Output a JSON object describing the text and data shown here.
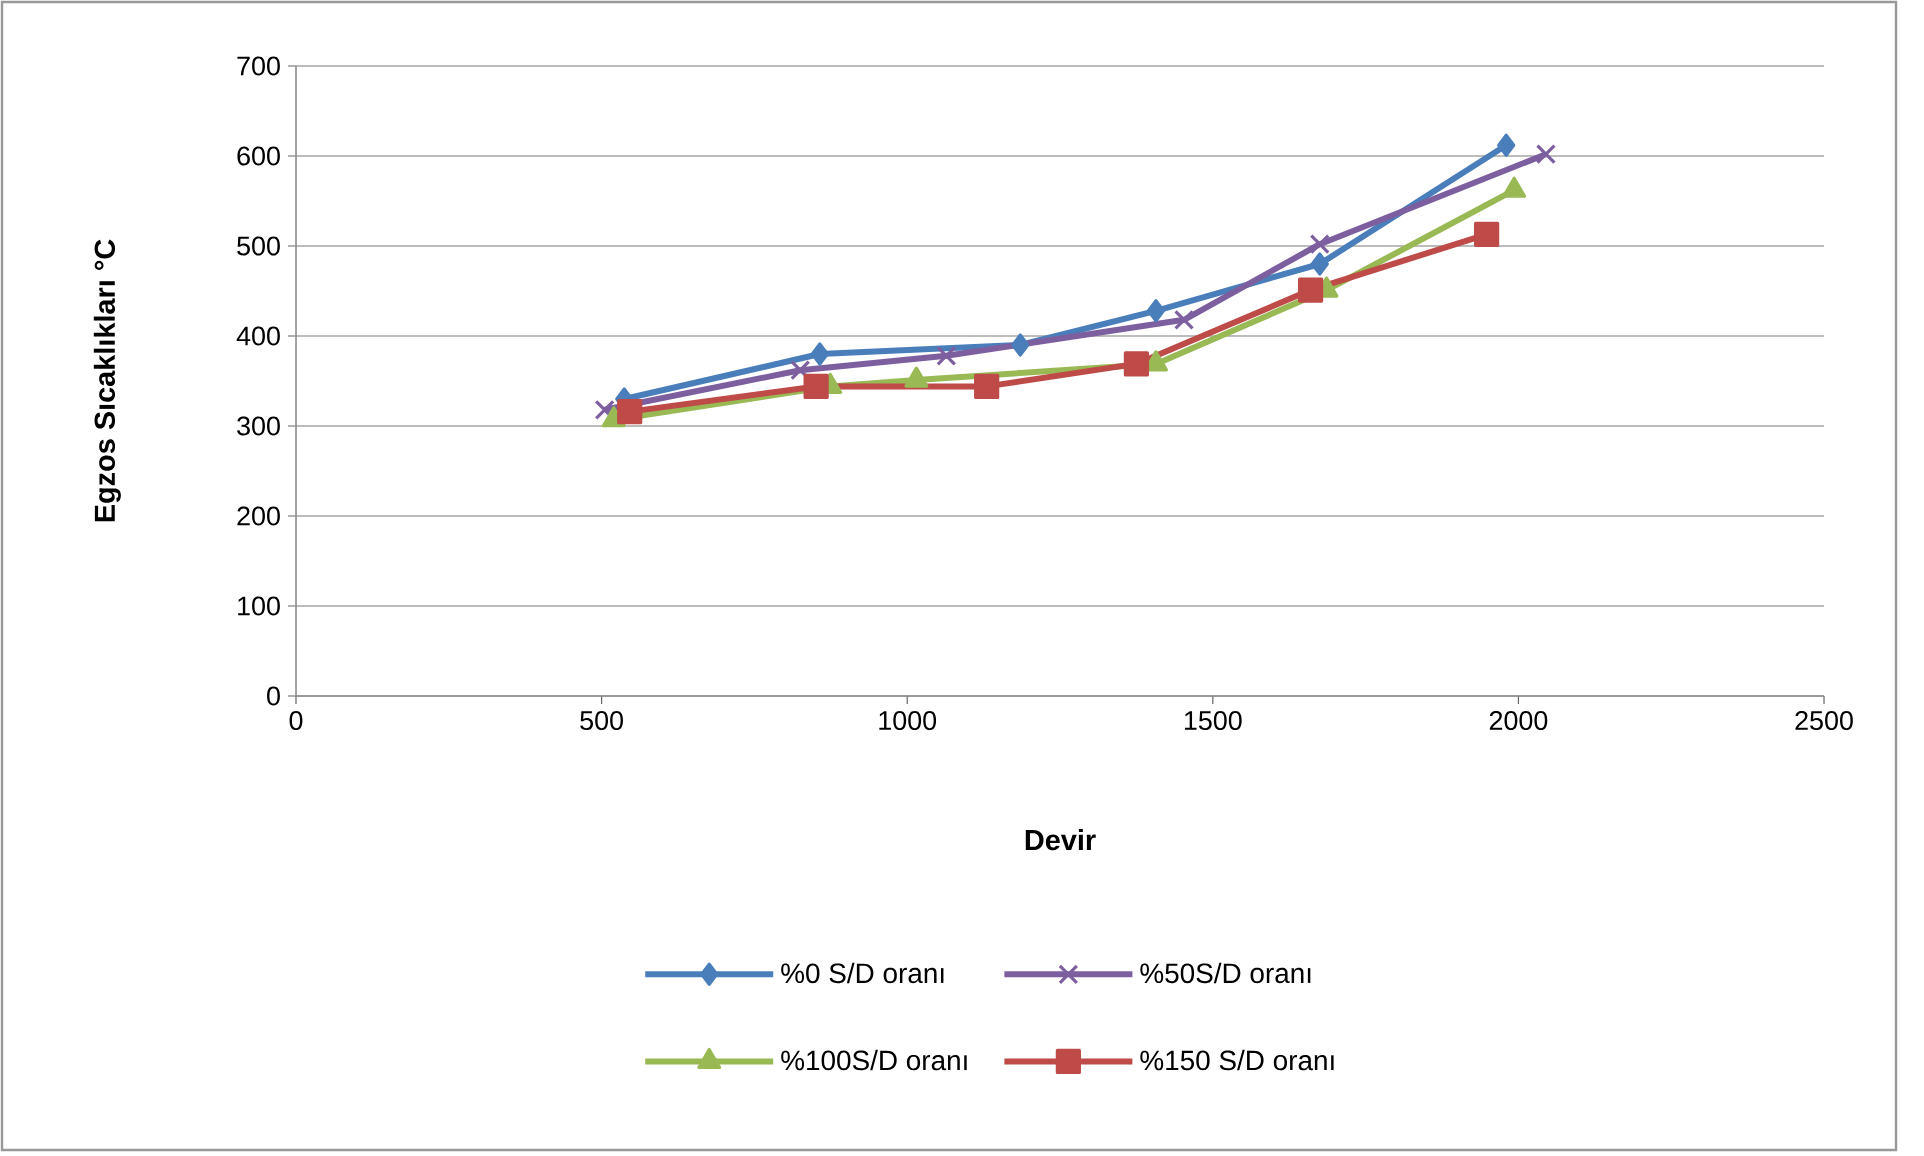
{
  "chart_data": {
    "type": "line",
    "xlabel": "Devir",
    "ylabel": "Egzos Sıcaklıkları °C",
    "xlim": [
      0,
      2500
    ],
    "xticks": [
      0,
      500,
      1000,
      1500,
      2000,
      2500
    ],
    "ylim": [
      0,
      700
    ],
    "yticks": [
      0,
      100,
      200,
      300,
      400,
      500,
      600,
      700
    ],
    "grid": "y",
    "legend": "bottom",
    "line_style": "solid",
    "series": [
      {
        "name": "%0 S/D oranı",
        "color": "#4a7ebb",
        "marker": "diamond",
        "x": [
          537,
          857,
          1185,
          1407,
          1675,
          1980
        ],
        "values": [
          330,
          380,
          390,
          428,
          480,
          612
        ]
      },
      {
        "name": "%50S/D oranı",
        "color": "#7d5fa0",
        "marker": "cross",
        "x": [
          505,
          825,
          1064,
          1453,
          1675,
          2045
        ],
        "values": [
          318,
          362,
          378,
          418,
          502,
          602
        ]
      },
      {
        "name": "%100S/D oranı",
        "color": "#98b954",
        "marker": "triangle",
        "x": [
          520,
          874,
          1015,
          1407,
          1686,
          1993
        ],
        "values": [
          307,
          344,
          351,
          369,
          451,
          562
        ]
      },
      {
        "name": "%150 S/D oranı",
        "color": "#be4b48",
        "marker": "square",
        "x": [
          546,
          851,
          1130,
          1375,
          1660,
          1948
        ],
        "values": [
          316,
          344,
          344,
          369,
          451,
          513
        ]
      }
    ]
  }
}
